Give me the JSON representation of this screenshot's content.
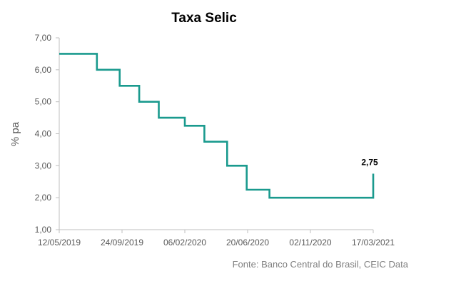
{
  "chart_data": {
    "type": "line",
    "title": "Taxa Selic",
    "ylabel": "% pa",
    "xlabel": "",
    "source": "Fonte: Banco Central do Brasil, CEIC Data",
    "ylim": [
      1.0,
      7.0
    ],
    "yticks": [
      "7,00",
      "6,00",
      "5,00",
      "4,00",
      "3,00",
      "2,00",
      "1,00"
    ],
    "xlim": [
      "2019-05-12",
      "2021-03-17"
    ],
    "xticks": [
      "12/05/2019",
      "24/09/2019",
      "06/02/2020",
      "20/06/2020",
      "02/11/2020",
      "17/03/2021"
    ],
    "grid": false,
    "legend": "none",
    "color": "#1a9a8e",
    "series": [
      {
        "steps": [
          {
            "date": "2019-05-12",
            "value": 6.5
          },
          {
            "date": "2019-08-01",
            "value": 6.0
          },
          {
            "date": "2019-09-19",
            "value": 5.5
          },
          {
            "date": "2019-10-31",
            "value": 5.0
          },
          {
            "date": "2019-12-12",
            "value": 4.5
          },
          {
            "date": "2020-02-06",
            "value": 4.25
          },
          {
            "date": "2020-03-19",
            "value": 3.75
          },
          {
            "date": "2020-05-07",
            "value": 3.0
          },
          {
            "date": "2020-06-18",
            "value": 2.25
          },
          {
            "date": "2020-08-06",
            "value": 2.0
          },
          {
            "date": "2021-03-17",
            "value": 2.75
          }
        ]
      }
    ],
    "annotations": [
      {
        "date": "2021-03-17",
        "value": 2.75,
        "label": "2,75"
      }
    ]
  }
}
